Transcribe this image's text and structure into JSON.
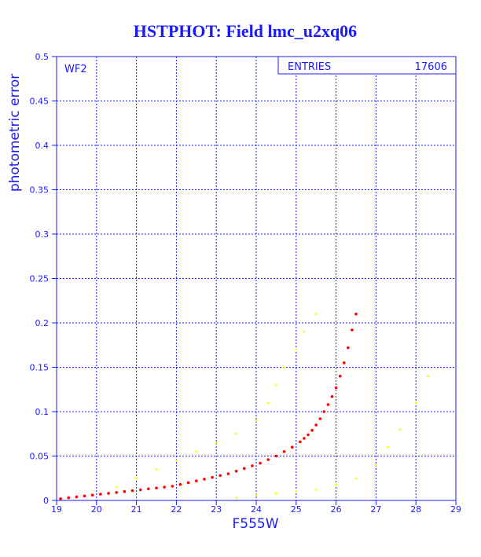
{
  "chart_data": {
    "type": "scatter",
    "title": "HSTPHOT: Field lmc_u2xq06",
    "xlabel": "F555W",
    "ylabel": "photometric error",
    "panel_label": "WF2",
    "stats_box": {
      "label": "ENTRIES",
      "value": "17606"
    },
    "xlim": [
      19,
      29
    ],
    "ylim": [
      0,
      0.5
    ],
    "x_ticks": [
      19,
      20,
      21,
      22,
      23,
      24,
      25,
      26,
      27,
      28,
      29
    ],
    "y_ticks": [
      0,
      0.05,
      0.1,
      0.15,
      0.2,
      0.25,
      0.3,
      0.35,
      0.4,
      0.45,
      0.5
    ],
    "x_tick_labels": [
      "19",
      "20",
      "21",
      "22",
      "23",
      "24",
      "25",
      "26",
      "27",
      "28",
      "29"
    ],
    "y_tick_labels": [
      "0",
      "0.05",
      "0.1",
      "0.15",
      "0.2",
      "0.25",
      "0.3",
      "0.35",
      "0.4",
      "0.45",
      "0.5"
    ],
    "grid": true,
    "colors": {
      "frame": "#1a1aff",
      "grid": "#1a1aff",
      "text": "#1a1aff",
      "series_main": "#ff0000",
      "series_secondary": "#ffff00"
    },
    "series": [
      {
        "color": "#ff0000",
        "x": [
          19.1,
          19.3,
          19.5,
          19.7,
          19.9,
          20.1,
          20.3,
          20.5,
          20.7,
          20.9,
          21.1,
          21.3,
          21.5,
          21.7,
          21.9,
          22.1,
          22.3,
          22.5,
          22.7,
          22.9,
          23.1,
          23.3,
          23.5,
          23.7,
          23.9,
          24.1,
          24.3,
          24.5,
          24.7,
          24.9,
          25.1,
          25.2,
          25.3,
          25.4,
          25.5,
          25.6,
          25.7,
          25.8,
          25.9,
          26.0,
          26.1,
          26.2,
          26.3,
          26.4,
          26.5
        ],
        "y": [
          0.002,
          0.003,
          0.004,
          0.005,
          0.006,
          0.007,
          0.008,
          0.009,
          0.01,
          0.011,
          0.012,
          0.013,
          0.014,
          0.015,
          0.016,
          0.018,
          0.02,
          0.022,
          0.024,
          0.026,
          0.028,
          0.03,
          0.033,
          0.036,
          0.039,
          0.042,
          0.046,
          0.05,
          0.055,
          0.06,
          0.066,
          0.07,
          0.074,
          0.079,
          0.085,
          0.092,
          0.1,
          0.108,
          0.117,
          0.127,
          0.14,
          0.155,
          0.172,
          0.192,
          0.21
        ]
      },
      {
        "color": "#ffff00",
        "x": [
          20.5,
          21.0,
          21.5,
          22.0,
          22.5,
          23.0,
          23.5,
          24.0,
          24.3,
          24.5,
          24.7,
          25.0,
          25.2,
          25.5,
          23.5,
          24.0,
          24.5,
          25.0,
          25.5,
          26.0,
          26.5,
          27.0,
          27.3,
          27.6,
          28.0,
          28.3
        ],
        "y": [
          0.015,
          0.025,
          0.035,
          0.045,
          0.055,
          0.065,
          0.075,
          0.09,
          0.11,
          0.13,
          0.15,
          0.17,
          0.19,
          0.21,
          0.003,
          0.006,
          0.008,
          0.01,
          0.012,
          0.018,
          0.025,
          0.04,
          0.06,
          0.08,
          0.11,
          0.14
        ]
      }
    ]
  }
}
